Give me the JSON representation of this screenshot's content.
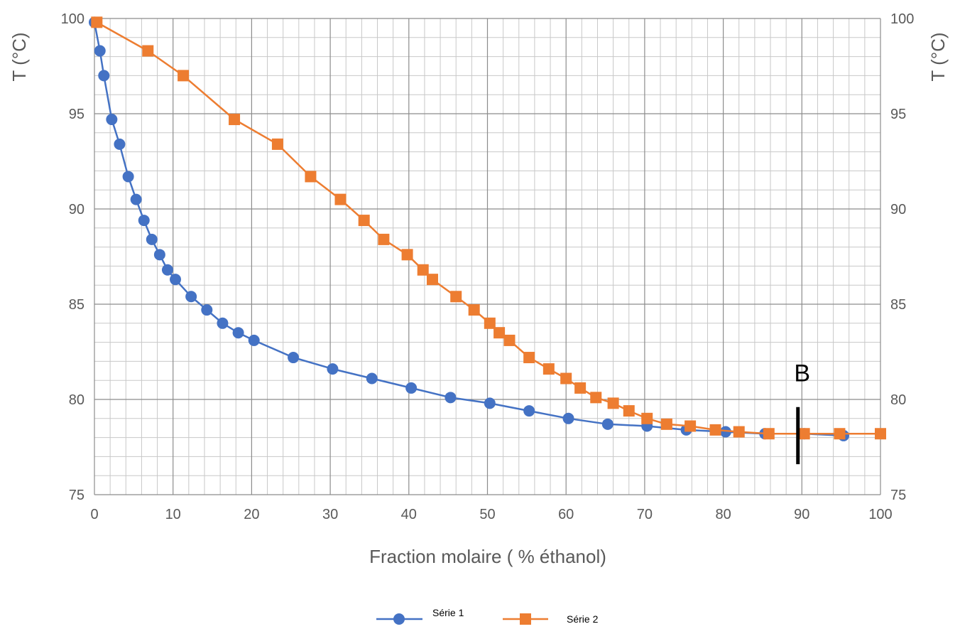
{
  "chart_data": {
    "type": "line",
    "xlabel": "Fraction molaire ( % éthanol)",
    "ylabel": "T (°C)",
    "ylabel_right": "T (°C)",
    "xlim": [
      0,
      100
    ],
    "ylim": [
      75,
      100
    ],
    "x_ticks": [
      "0",
      "10",
      "20",
      "30",
      "40",
      "50",
      "60",
      "70",
      "80",
      "90",
      "100"
    ],
    "y_ticks": [
      "75",
      "80",
      "85",
      "90",
      "95",
      "100"
    ],
    "grid": true,
    "legend_position": "bottom",
    "annotation": {
      "text": "B",
      "x": 89.5,
      "y_from": 76.6,
      "y_to": 79.6
    },
    "series": [
      {
        "name": "Série 1",
        "color": "#4472C4",
        "marker": "circle",
        "x": [
          0,
          0.7,
          1.2,
          2.2,
          3.2,
          4.3,
          5.3,
          6.3,
          7.3,
          8.3,
          9.3,
          10.3,
          12.3,
          14.3,
          16.3,
          18.3,
          20.3,
          25.3,
          30.3,
          35.3,
          40.3,
          45.3,
          50.3,
          55.3,
          60.3,
          65.3,
          70.3,
          75.3,
          80.3,
          85.3,
          90.3,
          95.3
        ],
        "y": [
          99.8,
          98.3,
          97.0,
          94.7,
          93.4,
          91.7,
          90.5,
          89.4,
          88.4,
          87.6,
          86.8,
          86.3,
          85.4,
          84.7,
          84.0,
          83.5,
          83.1,
          82.2,
          81.6,
          81.1,
          80.6,
          80.1,
          79.8,
          79.4,
          79.0,
          78.7,
          78.6,
          78.4,
          78.3,
          78.2,
          78.2,
          78.1
        ]
      },
      {
        "name": "Série 2",
        "color": "#ED7D31",
        "marker": "square",
        "x": [
          0.3,
          6.8,
          11.3,
          17.8,
          23.3,
          27.5,
          31.3,
          34.3,
          36.8,
          39.8,
          41.8,
          43.0,
          46.0,
          48.3,
          50.3,
          51.5,
          52.8,
          55.3,
          57.8,
          60.0,
          61.8,
          63.8,
          66.0,
          68.0,
          70.3,
          72.8,
          75.8,
          79.0,
          82.0,
          85.8,
          90.3,
          94.8,
          100.0
        ],
        "y": [
          99.8,
          98.3,
          97.0,
          94.7,
          93.4,
          91.7,
          90.5,
          89.4,
          88.4,
          87.6,
          86.8,
          86.3,
          85.4,
          84.7,
          84.0,
          83.5,
          83.1,
          82.2,
          81.6,
          81.1,
          80.6,
          80.1,
          79.8,
          79.4,
          79.0,
          78.7,
          78.6,
          78.4,
          78.3,
          78.2,
          78.2,
          78.2,
          78.2
        ]
      }
    ]
  }
}
